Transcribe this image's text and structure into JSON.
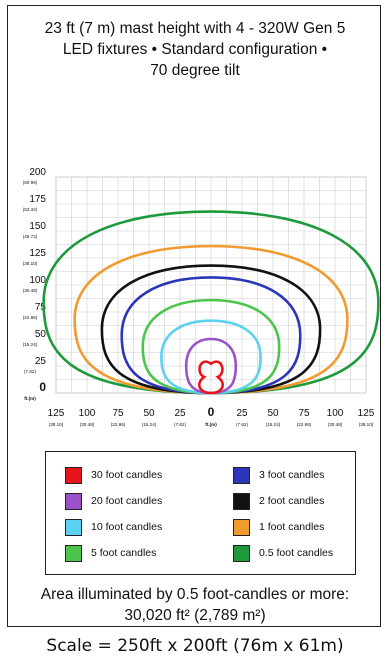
{
  "title": {
    "line1": "23 ft (7 m) mast height with 4 - 320W Gen 5",
    "line2": "LED fixtures • Standard configuration •",
    "line3": "70 degree tilt"
  },
  "y_axis": {
    "ticks": [
      {
        "label": "200",
        "sub": "(60.96)"
      },
      {
        "label": "175",
        "sub": "(53.34)"
      },
      {
        "label": "150",
        "sub": "(45.72)"
      },
      {
        "label": "125",
        "sub": "(38.10)"
      },
      {
        "label": "100",
        "sub": "(30.48)"
      },
      {
        "label": "75",
        "sub": "(22.86)"
      },
      {
        "label": "50",
        "sub": "(15.24)"
      },
      {
        "label": "25",
        "sub": "(7.62)"
      },
      {
        "label": "0",
        "sub": "ft.(m)"
      }
    ]
  },
  "x_axis": {
    "ticks": [
      {
        "label": "125",
        "sub": "(38.10)"
      },
      {
        "label": "100",
        "sub": "(30.48)"
      },
      {
        "label": "75",
        "sub": "(22.86)"
      },
      {
        "label": "50",
        "sub": "(15.24)"
      },
      {
        "label": "25",
        "sub": "(7.62)"
      },
      {
        "label": "0",
        "sub": "ft.(m)"
      },
      {
        "label": "25",
        "sub": "(7.62)"
      },
      {
        "label": "50",
        "sub": "(15.24)"
      },
      {
        "label": "75",
        "sub": "(22.86)"
      },
      {
        "label": "100",
        "sub": "(30.48)"
      },
      {
        "label": "125",
        "sub": "(38.10)"
      }
    ]
  },
  "contours": [
    {
      "level": "30 foot candles",
      "color": "#e8141c",
      "half_width_ft": 10,
      "reach_ft": 33
    },
    {
      "level": "20 foot candles",
      "color": "#9a52c6",
      "half_width_ft": 20,
      "reach_ft": 50
    },
    {
      "level": "10 foot candles",
      "color": "#5ad2f0",
      "half_width_ft": 40,
      "reach_ft": 67
    },
    {
      "level": "5 foot candles",
      "color": "#4cc44c",
      "half_width_ft": 55,
      "reach_ft": 86
    },
    {
      "level": "3 foot candles",
      "color": "#2c36b8",
      "half_width_ft": 72,
      "reach_ft": 107
    },
    {
      "level": "2 foot candles",
      "color": "#111111",
      "half_width_ft": 88,
      "reach_ft": 118
    },
    {
      "level": "1 foot candles",
      "color": "#f09a30",
      "half_width_ft": 110,
      "reach_ft": 136
    },
    {
      "level": "0.5 foot candles",
      "color": "#1e9a3c",
      "half_width_ft": 135,
      "reach_ft": 168
    }
  ],
  "legend": [
    {
      "label": "30 foot candles",
      "color": "#e8141c"
    },
    {
      "label": "3 foot candles",
      "color": "#2c36b8"
    },
    {
      "label": "20 foot candles",
      "color": "#9a52c6"
    },
    {
      "label": "2 foot candles",
      "color": "#111111"
    },
    {
      "label": "10 foot candles",
      "color": "#5ad2f0"
    },
    {
      "label": "1 foot candles",
      "color": "#f09a30"
    },
    {
      "label": "5 foot candles",
      "color": "#4cc44c"
    },
    {
      "label": "0.5 foot candles",
      "color": "#1e9a3c"
    }
  ],
  "area": {
    "line1": "Area illuminated by 0.5 foot-candles or more:",
    "line2": "30,020 ft² (2,789 m²)"
  },
  "scale": "Scale = 250ft x 200ft (76m x 61m)"
}
